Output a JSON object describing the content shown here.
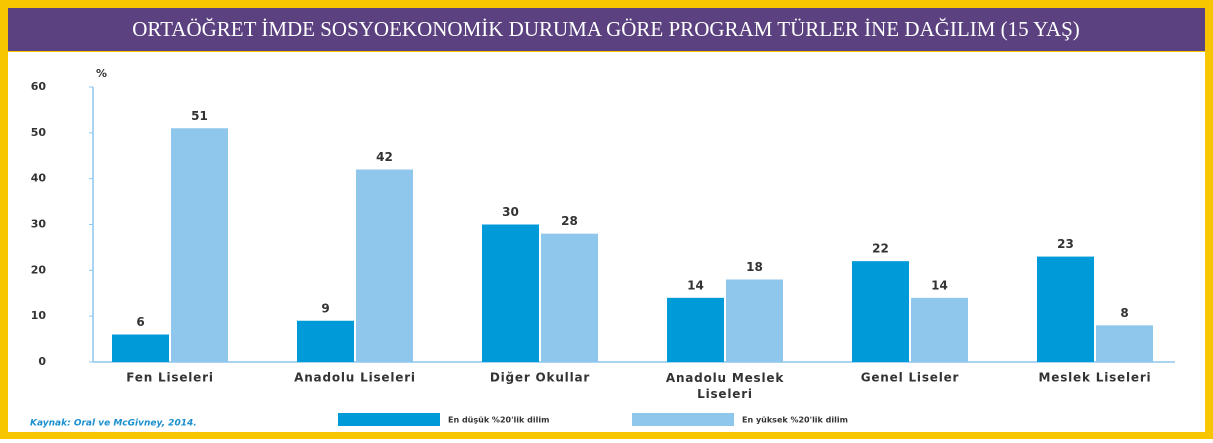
{
  "chart_data": {
    "type": "bar",
    "title": "ORTAÖĞRET İMDE SOSYOEKONOMİK DURUMA GÖRE PROGRAM TÜRLER İNE DAĞILIM (15 YAŞ)",
    "y_label": "%",
    "categories": [
      "Fen Liseleri",
      "Anadolu Liseleri",
      "Diğer Okullar",
      "Anadolu Meslek Liseleri",
      "Genel Liseler",
      "Meslek Liseleri"
    ],
    "series": [
      {
        "name": "En düşük %20'lik dilim",
        "color": "#009ad8",
        "values": [
          6,
          9,
          30,
          14,
          22,
          23
        ]
      },
      {
        "name": "En yüksek %20'lik dilim",
        "color": "#8fc6ec",
        "values": [
          51,
          42,
          28,
          18,
          14,
          8
        ]
      }
    ],
    "ylim": [
      0,
      60
    ],
    "yticks": [
      0,
      10,
      20,
      30,
      40,
      50,
      60
    ],
    "source": "Kaynak: Oral ve McGivney, 2014."
  }
}
